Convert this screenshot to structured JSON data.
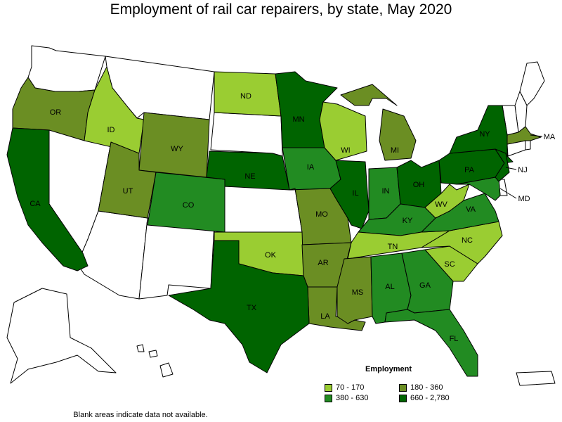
{
  "title": "Employment of rail car repairers, by state, May 2020",
  "legend": {
    "title": "Employment",
    "items": [
      {
        "label": "70 - 170",
        "color": "#9ACD32"
      },
      {
        "label": "180 - 360",
        "color": "#6B8E23"
      },
      {
        "label": "380 - 630",
        "color": "#228B22"
      },
      {
        "label": "660 - 2,780",
        "color": "#006400"
      }
    ]
  },
  "note": "Blank areas indicate data not available.",
  "colors": {
    "blank": "#ffffff",
    "c1": "#9ACD32",
    "c2": "#6B8E23",
    "c3": "#228B22",
    "c4": "#006400"
  },
  "chart_data": {
    "type": "choropleth",
    "title": "Employment of rail car repairers, by state, May 2020",
    "legend_title": "Employment",
    "bins": [
      "70 - 170",
      "180 - 360",
      "380 - 630",
      "660 - 2,780"
    ],
    "states": [
      {
        "code": "OR",
        "bin": "180 - 360"
      },
      {
        "code": "ID",
        "bin": "70 - 170"
      },
      {
        "code": "WY",
        "bin": "180 - 360"
      },
      {
        "code": "UT",
        "bin": "180 - 360"
      },
      {
        "code": "CO",
        "bin": "380 - 630"
      },
      {
        "code": "CA",
        "bin": "660 - 2,780"
      },
      {
        "code": "ND",
        "bin": "70 - 170"
      },
      {
        "code": "MN",
        "bin": "660 - 2,780"
      },
      {
        "code": "NE",
        "bin": "660 - 2,780"
      },
      {
        "code": "IA",
        "bin": "380 - 630"
      },
      {
        "code": "MO",
        "bin": "180 - 360"
      },
      {
        "code": "OK",
        "bin": "70 - 170"
      },
      {
        "code": "AR",
        "bin": "180 - 360"
      },
      {
        "code": "LA",
        "bin": "180 - 360"
      },
      {
        "code": "TX",
        "bin": "660 - 2,780"
      },
      {
        "code": "WI",
        "bin": "70 - 170"
      },
      {
        "code": "IL",
        "bin": "660 - 2,780"
      },
      {
        "code": "MI",
        "bin": "180 - 360"
      },
      {
        "code": "IN",
        "bin": "380 - 630"
      },
      {
        "code": "OH",
        "bin": "660 - 2,780"
      },
      {
        "code": "KY",
        "bin": "380 - 630"
      },
      {
        "code": "TN",
        "bin": "70 - 170"
      },
      {
        "code": "MS",
        "bin": "180 - 360"
      },
      {
        "code": "AL",
        "bin": "380 - 630"
      },
      {
        "code": "GA",
        "bin": "380 - 630"
      },
      {
        "code": "FL",
        "bin": "380 - 630"
      },
      {
        "code": "SC",
        "bin": "70 - 170"
      },
      {
        "code": "NC",
        "bin": "70 - 170"
      },
      {
        "code": "VA",
        "bin": "380 - 630"
      },
      {
        "code": "WV",
        "bin": "70 - 170"
      },
      {
        "code": "MD",
        "bin": "380 - 630"
      },
      {
        "code": "PA",
        "bin": "660 - 2,780"
      },
      {
        "code": "NY",
        "bin": "660 - 2,780"
      },
      {
        "code": "NJ",
        "bin": "660 - 2,780"
      },
      {
        "code": "MA",
        "bin": "180 - 360"
      }
    ]
  }
}
